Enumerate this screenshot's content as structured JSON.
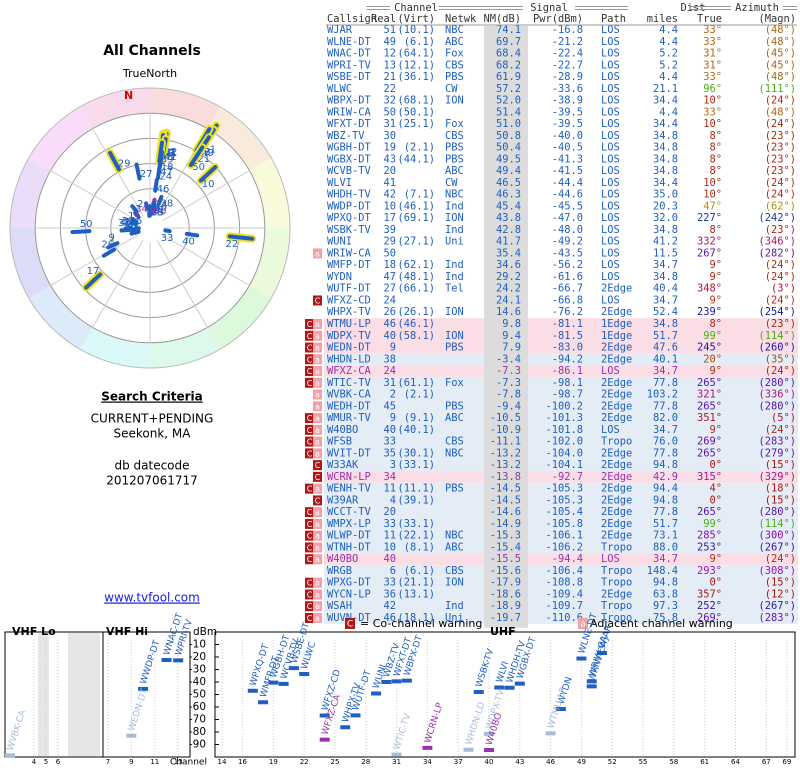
{
  "left": {
    "title": "All Channels",
    "north_label": "TrueNorth",
    "north_mark": "N",
    "criteria_title": "Search Criteria",
    "criteria": "CURRENT+PENDING",
    "location": "Seekonk, MA",
    "datecode_label": "db datecode",
    "datecode": "201207061717",
    "link": "www.tvfool.com"
  },
  "table": {
    "groups": [
      "Channel",
      "Signal",
      "Dist",
      "Azimuth"
    ],
    "columns": [
      "Callsign",
      "Real",
      "(Virt)",
      "Netwk",
      "NM(dB)",
      "Pwr(dBm)",
      "Path",
      "miles",
      "True",
      "(Magn)"
    ],
    "default_color": "#1f5fbf",
    "rows": [
      {
        "cells": [
          "WJAR",
          "51",
          "(10.1)",
          "NBC",
          "74.1",
          "-16.8",
          "LOS",
          "4.4",
          "33°",
          "(48°)"
        ],
        "warnings": []
      },
      {
        "cells": [
          "WLNE-DT",
          "49",
          "(6.1)",
          "ABC",
          "69.7",
          "-21.2",
          "LOS",
          "4.4",
          "33°",
          "(48°)"
        ],
        "warnings": []
      },
      {
        "cells": [
          "WNAC-DT",
          "12",
          "(64.1)",
          "Fox",
          "68.4",
          "-22.4",
          "LOS",
          "5.2",
          "31°",
          "(45°)"
        ],
        "warnings": []
      },
      {
        "cells": [
          "WPRI-TV",
          "13",
          "(12.1)",
          "CBS",
          "68.2",
          "-22.7",
          "LOS",
          "5.2",
          "31°",
          "(45°)"
        ],
        "warnings": []
      },
      {
        "cells": [
          "WSBE-DT",
          "21",
          "(36.1)",
          "PBS",
          "61.9",
          "-28.9",
          "LOS",
          "4.4",
          "33°",
          "(48°)"
        ],
        "warnings": []
      },
      {
        "cells": [
          "WLWC",
          "22",
          "",
          "CW",
          "57.2",
          "-33.6",
          "LOS",
          "21.1",
          "96°",
          "(111°)"
        ],
        "warnings": []
      },
      {
        "cells": [
          "WBPX-DT",
          "32",
          "(68.1)",
          "ION",
          "52.0",
          "-38.9",
          "LOS",
          "34.4",
          "10°",
          "(24°)"
        ],
        "warnings": []
      },
      {
        "cells": [
          "WRIW-CA",
          "50",
          "(50.1)",
          "",
          "51.4",
          "-39.5",
          "LOS",
          "4.4",
          "33°",
          "(48°)"
        ],
        "warnings": []
      },
      {
        "cells": [
          "WFXT-DT",
          "31",
          "(25.1)",
          "Fox",
          "51.0",
          "-39.5",
          "LOS",
          "34.4",
          "10°",
          "(24°)"
        ],
        "warnings": []
      },
      {
        "cells": [
          "WBZ-TV",
          "30",
          "",
          "CBS",
          "50.8",
          "-40.0",
          "LOS",
          "34.8",
          "8°",
          "(23°)"
        ],
        "warnings": []
      },
      {
        "cells": [
          "WGBH-DT",
          "19",
          "(2.1)",
          "PBS",
          "50.4",
          "-40.5",
          "LOS",
          "34.8",
          "8°",
          "(23°)"
        ],
        "warnings": []
      },
      {
        "cells": [
          "WGBX-DT",
          "43",
          "(44.1)",
          "PBS",
          "49.5",
          "-41.3",
          "LOS",
          "34.8",
          "8°",
          "(23°)"
        ],
        "warnings": []
      },
      {
        "cells": [
          "WCVB-TV",
          "20",
          "",
          "ABC",
          "49.4",
          "-41.5",
          "LOS",
          "34.8",
          "8°",
          "(23°)"
        ],
        "warnings": []
      },
      {
        "cells": [
          "WLVI",
          "41",
          "",
          "CW",
          "46.5",
          "-44.4",
          "LOS",
          "34.4",
          "10°",
          "(24°)"
        ],
        "warnings": []
      },
      {
        "cells": [
          "WHDH-TV",
          "42",
          "(7.1)",
          "NBC",
          "46.3",
          "-44.6",
          "LOS",
          "35.0",
          "10°",
          "(24°)"
        ],
        "warnings": []
      },
      {
        "cells": [
          "WWDP-DT",
          "10",
          "(46.1)",
          "Ind",
          "45.4",
          "-45.5",
          "LOS",
          "20.3",
          "47°",
          "(62°)"
        ],
        "warnings": []
      },
      {
        "cells": [
          "WPXQ-DT",
          "17",
          "(69.1)",
          "ION",
          "43.8",
          "-47.0",
          "LOS",
          "32.0",
          "227°",
          "(242°)"
        ],
        "warnings": []
      },
      {
        "cells": [
          "WSBK-TV",
          "39",
          "",
          "Ind",
          "42.8",
          "-48.0",
          "LOS",
          "34.8",
          "8°",
          "(23°)"
        ],
        "warnings": []
      },
      {
        "cells": [
          "WUNI",
          "29",
          "(27.1)",
          "Uni",
          "41.7",
          "-49.2",
          "LOS",
          "41.2",
          "332°",
          "(346°)"
        ],
        "warnings": []
      },
      {
        "cells": [
          "WRIW-CA",
          "50",
          "",
          "",
          "35.4",
          "-43.5",
          "LOS",
          "11.5",
          "267°",
          "(282°)"
        ],
        "warnings": [
          "a"
        ]
      },
      {
        "cells": [
          "WMFP-DT",
          "18",
          "(62.1)",
          "Ind",
          "34.6",
          "-56.2",
          "LOS",
          "34.7",
          "9°",
          "(24°)"
        ],
        "warnings": []
      },
      {
        "cells": [
          "WYDN",
          "47",
          "(48.1)",
          "Ind",
          "29.2",
          "-61.6",
          "LOS",
          "34.8",
          "9°",
          "(24°)"
        ],
        "warnings": []
      },
      {
        "cells": [
          "WUTF-DT",
          "27",
          "(66.1)",
          "Tel",
          "24.2",
          "-66.7",
          "2Edge",
          "40.4",
          "348°",
          "(3°)"
        ],
        "warnings": []
      },
      {
        "cells": [
          "WFXZ-CD",
          "24",
          "",
          "",
          "24.1",
          "-66.8",
          "LOS",
          "34.7",
          "9°",
          "(24°)"
        ],
        "warnings": [
          "C"
        ]
      },
      {
        "cells": [
          "WHPX-TV",
          "26",
          "(26.1)",
          "ION",
          "14.6",
          "-76.2",
          "2Edge",
          "52.4",
          "239°",
          "(254°)"
        ],
        "warnings": []
      },
      {
        "cells": [
          "WTMU-LP",
          "46",
          "(46.1)",
          "",
          "9.8",
          "-81.1",
          "1Edge",
          "34.8",
          "8°",
          "(23°)"
        ],
        "warnings": [
          "C",
          "a"
        ]
      },
      {
        "cells": [
          "WDPX-TV",
          "40",
          "(58.1)",
          "ION",
          "9.4",
          "-81.5",
          "1Edge",
          "51.7",
          "99°",
          "(114°)"
        ],
        "warnings": [
          "C",
          "a"
        ]
      },
      {
        "cells": [
          "WEDN-DT",
          "9",
          "",
          "PBS",
          "7.9",
          "-83.0",
          "2Edge",
          "47.6",
          "245°",
          "(260°)"
        ],
        "warnings": [
          "C",
          "a"
        ]
      },
      {
        "cells": [
          "WHDN-LD",
          "38",
          "",
          "",
          "-3.4",
          "-94.2",
          "2Edge",
          "40.1",
          "20°",
          "(35°)"
        ],
        "warnings": [
          "C",
          "a"
        ]
      },
      {
        "cells": [
          "WFXZ-CA",
          "24",
          "",
          "",
          "-7.3",
          "-86.1",
          "LOS",
          "34.7",
          "9°",
          "(24°)"
        ],
        "warnings": [
          "C",
          "a"
        ],
        "color": "#9933aa"
      },
      {
        "cells": [
          "WTIC-TV",
          "31",
          "(61.1)",
          "Fox",
          "-7.3",
          "-98.1",
          "2Edge",
          "77.8",
          "265°",
          "(280°)"
        ],
        "warnings": [
          "C",
          "a"
        ]
      },
      {
        "cells": [
          "WVBK-CA",
          "2",
          "(2.1)",
          "",
          "-7.8",
          "-98.7",
          "2Edge",
          "103.2",
          "321°",
          "(336°)"
        ],
        "warnings": [
          "a"
        ]
      },
      {
        "cells": [
          "WEDH-DT",
          "45",
          "",
          "PBS",
          "-9.4",
          "-100.2",
          "2Edge",
          "77.8",
          "265°",
          "(280°)"
        ],
        "warnings": [
          "a"
        ]
      },
      {
        "cells": [
          "WMUR-TV",
          "9",
          "(9.1)",
          "ABC",
          "-10.5",
          "-101.3",
          "2Edge",
          "82.0",
          "351°",
          "(5°)"
        ],
        "warnings": [
          "C",
          "a"
        ]
      },
      {
        "cells": [
          "W40BO",
          "40",
          "(40.1)",
          "",
          "-10.9",
          "-101.8",
          "LOS",
          "34.7",
          "9°",
          "(24°)"
        ],
        "warnings": [
          "C",
          "a"
        ]
      },
      {
        "cells": [
          "WFSB",
          "33",
          "",
          "CBS",
          "-11.1",
          "-102.0",
          "Tropo",
          "76.0",
          "269°",
          "(283°)"
        ],
        "warnings": [
          "C",
          "a"
        ]
      },
      {
        "cells": [
          "WVIT-DT",
          "35",
          "(30.1)",
          "NBC",
          "-13.2",
          "-104.0",
          "2Edge",
          "77.8",
          "265°",
          "(279°)"
        ],
        "warnings": [
          "C",
          "a"
        ]
      },
      {
        "cells": [
          "W33AK",
          "3",
          "(33.1)",
          "",
          "-13.2",
          "-104.1",
          "2Edge",
          "94.8",
          "0°",
          "(15°)"
        ],
        "warnings": [
          "C"
        ]
      },
      {
        "cells": [
          "WCRN-LP",
          "34",
          "",
          "",
          "-13.8",
          "-92.7",
          "2Edge",
          "42.9",
          "315°",
          "(329°)"
        ],
        "warnings": [
          "C"
        ],
        "color": "#9933aa"
      },
      {
        "cells": [
          "WENH-TV",
          "11",
          "(11.1)",
          "PBS",
          "-14.5",
          "-105.3",
          "2Edge",
          "94.4",
          "4°",
          "(18°)"
        ],
        "warnings": [
          "C",
          "a"
        ]
      },
      {
        "cells": [
          "W39AR",
          "4",
          "(39.1)",
          "",
          "-14.5",
          "-105.3",
          "2Edge",
          "94.8",
          "0°",
          "(15°)"
        ],
        "warnings": [
          "C"
        ]
      },
      {
        "cells": [
          "WCCT-TV",
          "20",
          "",
          "",
          "-14.6",
          "-105.4",
          "2Edge",
          "77.8",
          "265°",
          "(280°)"
        ],
        "warnings": [
          "C",
          "a"
        ]
      },
      {
        "cells": [
          "WMPX-LP",
          "33",
          "(33.1)",
          "",
          "-14.9",
          "-105.8",
          "2Edge",
          "51.7",
          "99°",
          "(114°)"
        ],
        "warnings": [
          "C",
          "a"
        ]
      },
      {
        "cells": [
          "WLWP-DT",
          "11",
          "(22.1)",
          "NBC",
          "-15.3",
          "-106.1",
          "2Edge",
          "73.1",
          "285°",
          "(300°)"
        ],
        "warnings": [
          "C",
          "a"
        ]
      },
      {
        "cells": [
          "WTNH-DT",
          "10",
          "(8.1)",
          "ABC",
          "-15.4",
          "-106.2",
          "Tropo",
          "88.0",
          "253°",
          "(267°)"
        ],
        "warnings": [
          "C",
          "a"
        ]
      },
      {
        "cells": [
          "W40BO",
          "40",
          "",
          "",
          "-15.5",
          "-94.4",
          "LOS",
          "34.7",
          "9°",
          "(24°)"
        ],
        "warnings": [
          "C",
          "a"
        ],
        "color": "#9933aa"
      },
      {
        "cells": [
          "WRGB",
          "6",
          "(6.1)",
          "CBS",
          "-15.6",
          "-106.4",
          "Tropo",
          "148.4",
          "293°",
          "(308°)"
        ],
        "warnings": []
      },
      {
        "cells": [
          "WPXG-DT",
          "33",
          "(21.1)",
          "ION",
          "-17.9",
          "-108.8",
          "Tropo",
          "94.8",
          "0°",
          "(15°)"
        ],
        "warnings": [
          "C",
          "a"
        ]
      },
      {
        "cells": [
          "WYCN-LP",
          "36",
          "(13.1)",
          "",
          "-18.6",
          "-109.4",
          "2Edge",
          "63.8",
          "357°",
          "(12°)"
        ],
        "warnings": [
          "C",
          "a"
        ]
      },
      {
        "cells": [
          "WSAH",
          "42",
          "",
          "Ind",
          "-18.9",
          "-109.7",
          "Tropo",
          "97.3",
          "252°",
          "(267°)"
        ],
        "warnings": [
          "C",
          "a"
        ]
      },
      {
        "cells": [
          "WUVN-DT",
          "46",
          "(18.1)",
          "Uni",
          "-19.7",
          "-110.6",
          "Tropo",
          "75.8",
          "269°",
          "(283°)"
        ],
        "warnings": [
          "C",
          "a"
        ]
      }
    ]
  },
  "legend": {
    "co_icon": "C",
    "co_text": "= Co-channel warning",
    "adj_icon": "a",
    "adj_text": "Adjacent channel warning"
  },
  "spectrum": {
    "ylabel": "dBm",
    "xlabel": "Channel",
    "ylim": [
      -100,
      0
    ],
    "yticks": [
      -10,
      -20,
      -30,
      -40,
      -50,
      -60,
      -70,
      -80,
      -90
    ],
    "bands": [
      {
        "name": "VHF Lo",
        "ticks": [
          4,
          5,
          6
        ]
      },
      {
        "name": "VHF Hi",
        "ticks": [
          7,
          9,
          11,
          13
        ]
      },
      {
        "name": "UHF",
        "ticks": [
          14,
          16,
          19,
          22,
          25,
          28,
          31,
          34,
          37,
          40,
          43,
          46,
          49,
          52,
          55,
          58,
          61,
          64,
          67,
          69
        ]
      }
    ]
  }
}
